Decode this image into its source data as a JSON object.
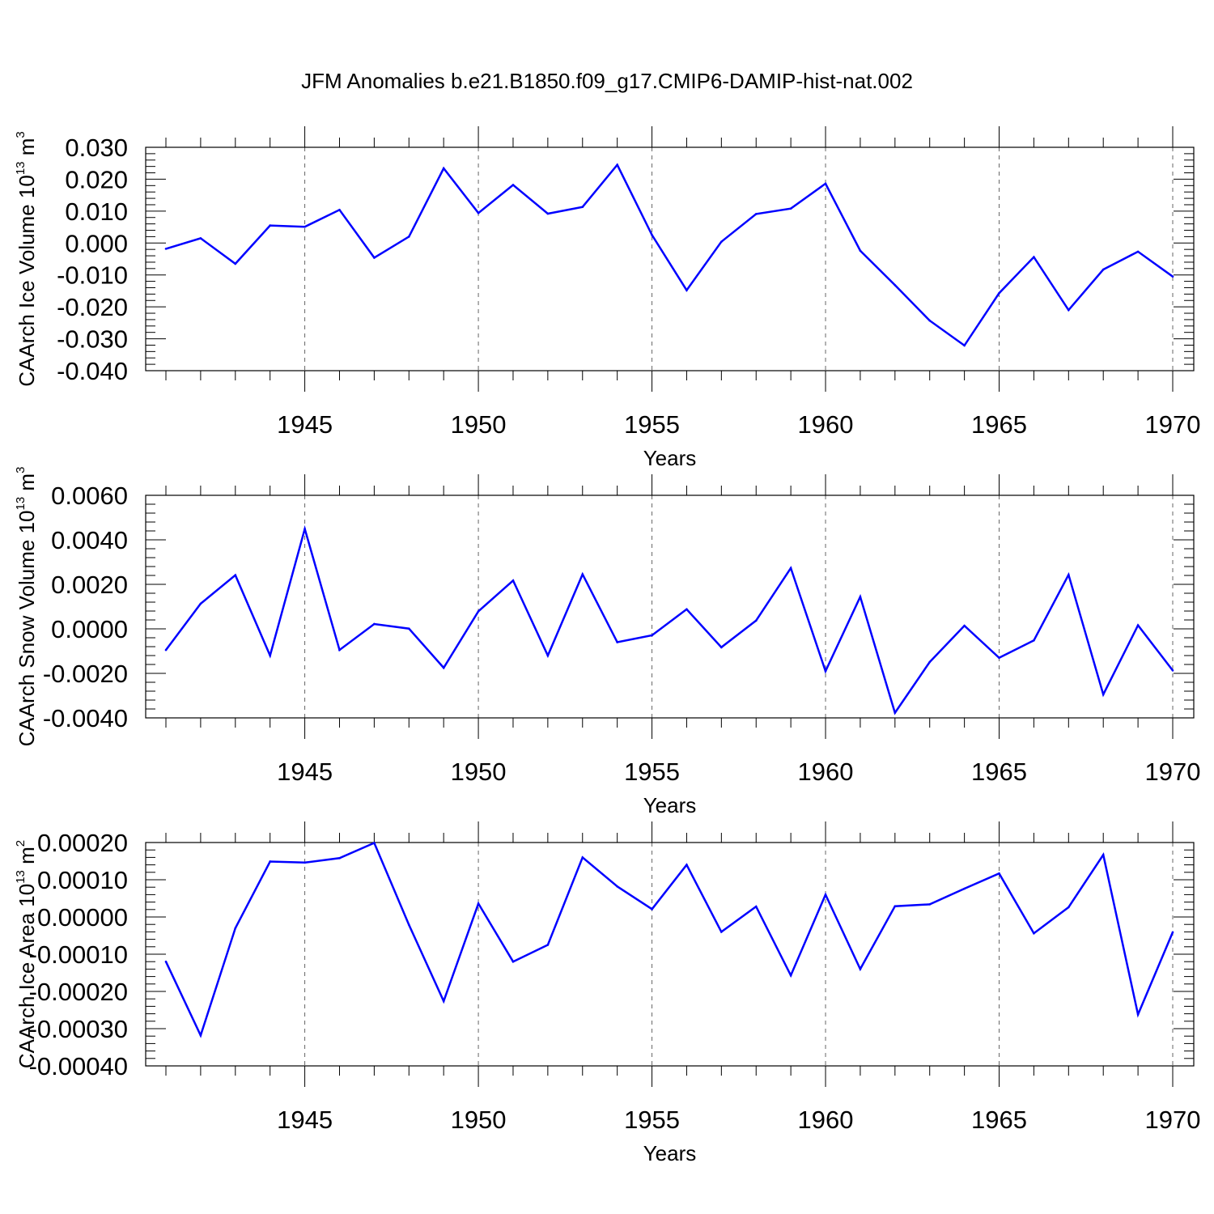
{
  "figure": {
    "title": "JFM Anomalies b.e21.B1850.f09_g17.CMIP6-DAMIP-hist-nat.002"
  },
  "chart_data": [
    {
      "type": "line",
      "title": "",
      "xlabel": "Years",
      "ylabel": "CAArch Ice Volume 10",
      "ylabel_sup": "13",
      "ylabel_unit": "m",
      "ylabel_unit_sup": "3",
      "xlim": [
        1941,
        1970
      ],
      "ylim": [
        -0.04,
        0.03
      ],
      "xticks": [
        1945,
        1950,
        1955,
        1960,
        1965,
        1970
      ],
      "yticks": [
        "-0.040",
        "-0.030",
        "-0.020",
        "-0.010",
        "0.000",
        "0.010",
        "0.020",
        "0.030"
      ],
      "yticks_values": [
        -0.04,
        -0.03,
        -0.02,
        -0.01,
        0.0,
        0.01,
        0.02,
        0.03
      ],
      "grid": "vertical dashed at major ticks",
      "series": [
        {
          "color": "#0000ff",
          "x": [
            1941,
            1942,
            1943,
            1944,
            1945,
            1946,
            1947,
            1948,
            1949,
            1950,
            1951,
            1952,
            1953,
            1954,
            1955,
            1956,
            1957,
            1958,
            1959,
            1960,
            1961,
            1962,
            1963,
            1964,
            1965,
            1966,
            1967,
            1968,
            1969,
            1970
          ],
          "y": [
            -0.0018,
            0.0015,
            -0.0065,
            0.0055,
            0.0051,
            0.0104,
            -0.0046,
            0.002,
            0.0234,
            0.0094,
            0.0182,
            0.0092,
            0.0113,
            0.0245,
            0.0025,
            -0.0148,
            0.0004,
            0.0091,
            0.0108,
            0.0186,
            -0.0024,
            -0.0132,
            -0.0243,
            -0.0321,
            -0.0157,
            -0.0044,
            -0.021,
            -0.0083,
            -0.0027,
            -0.0105
          ]
        }
      ]
    },
    {
      "type": "line",
      "title": "",
      "xlabel": "Years",
      "ylabel": "CAArch Snow Volume 10",
      "ylabel_sup": "13",
      "ylabel_unit": "m",
      "ylabel_unit_sup": "3",
      "xlim": [
        1941,
        1970
      ],
      "ylim": [
        -0.004,
        0.006
      ],
      "xticks": [
        1945,
        1950,
        1955,
        1960,
        1965,
        1970
      ],
      "yticks": [
        "-0.0040",
        "-0.0020",
        "0.0000",
        "0.0020",
        "0.0040",
        "0.0060"
      ],
      "yticks_values": [
        -0.004,
        -0.002,
        0.0,
        0.002,
        0.004,
        0.006
      ],
      "grid": "vertical dashed at major ticks",
      "series": [
        {
          "color": "#0000ff",
          "x": [
            1941,
            1942,
            1943,
            1944,
            1945,
            1946,
            1947,
            1948,
            1949,
            1950,
            1951,
            1952,
            1953,
            1954,
            1955,
            1956,
            1957,
            1958,
            1959,
            1960,
            1961,
            1962,
            1963,
            1964,
            1965,
            1966,
            1967,
            1968,
            1969,
            1970
          ],
          "y": [
            -0.00095,
            0.00113,
            0.00241,
            -0.0012,
            0.00449,
            -0.00095,
            0.00022,
            1e-05,
            -0.00175,
            0.00079,
            0.00217,
            -0.0012,
            0.00245,
            -0.0006,
            -0.00029,
            0.00088,
            -0.00083,
            0.00037,
            0.00273,
            -0.0019,
            0.00144,
            -0.00377,
            -0.00149,
            0.00014,
            -0.0013,
            -0.00052,
            0.00243,
            -0.00295,
            0.00016,
            -0.00187
          ]
        }
      ]
    },
    {
      "type": "line",
      "title": "",
      "xlabel": "Years",
      "ylabel": "CAArch Ice Area 10",
      "ylabel_sup": "13",
      "ylabel_unit": "m",
      "ylabel_unit_sup": "2",
      "xlim": [
        1941,
        1970
      ],
      "ylim": [
        -0.0004,
        0.0002
      ],
      "xticks": [
        1945,
        1950,
        1955,
        1960,
        1965,
        1970
      ],
      "yticks": [
        "-0.00040",
        "-0.00030",
        "-0.00020",
        "-0.00010",
        "0.00000",
        "0.00010",
        "0.00020"
      ],
      "yticks_values": [
        -0.0004,
        -0.0003,
        -0.0002,
        -0.0001,
        0.0,
        0.0001,
        0.0002
      ],
      "grid": "vertical dashed at major ticks",
      "series": [
        {
          "color": "#0000ff",
          "x": [
            1941,
            1942,
            1943,
            1944,
            1945,
            1946,
            1947,
            1948,
            1949,
            1950,
            1951,
            1952,
            1953,
            1954,
            1955,
            1956,
            1957,
            1958,
            1959,
            1960,
            1961,
            1962,
            1963,
            1964,
            1965,
            1966,
            1967,
            1968,
            1969,
            1970
          ],
          "y": [
            -0.00012,
            -0.000318,
            -3e-05,
            0.000149,
            0.000146,
            0.000158,
            0.000199,
            -2.1e-05,
            -0.000226,
            3.6e-05,
            -0.00012,
            -7.5e-05,
            0.00016,
            8.2e-05,
            2.1e-05,
            0.00014,
            -4e-05,
            2.8e-05,
            -0.000157,
            6e-05,
            -0.00014,
            2.9e-05,
            3.4e-05,
            7.6e-05,
            0.000117,
            -4.4e-05,
            2.6e-05,
            0.000167,
            -0.000262,
            -4.1e-05
          ]
        }
      ]
    }
  ]
}
